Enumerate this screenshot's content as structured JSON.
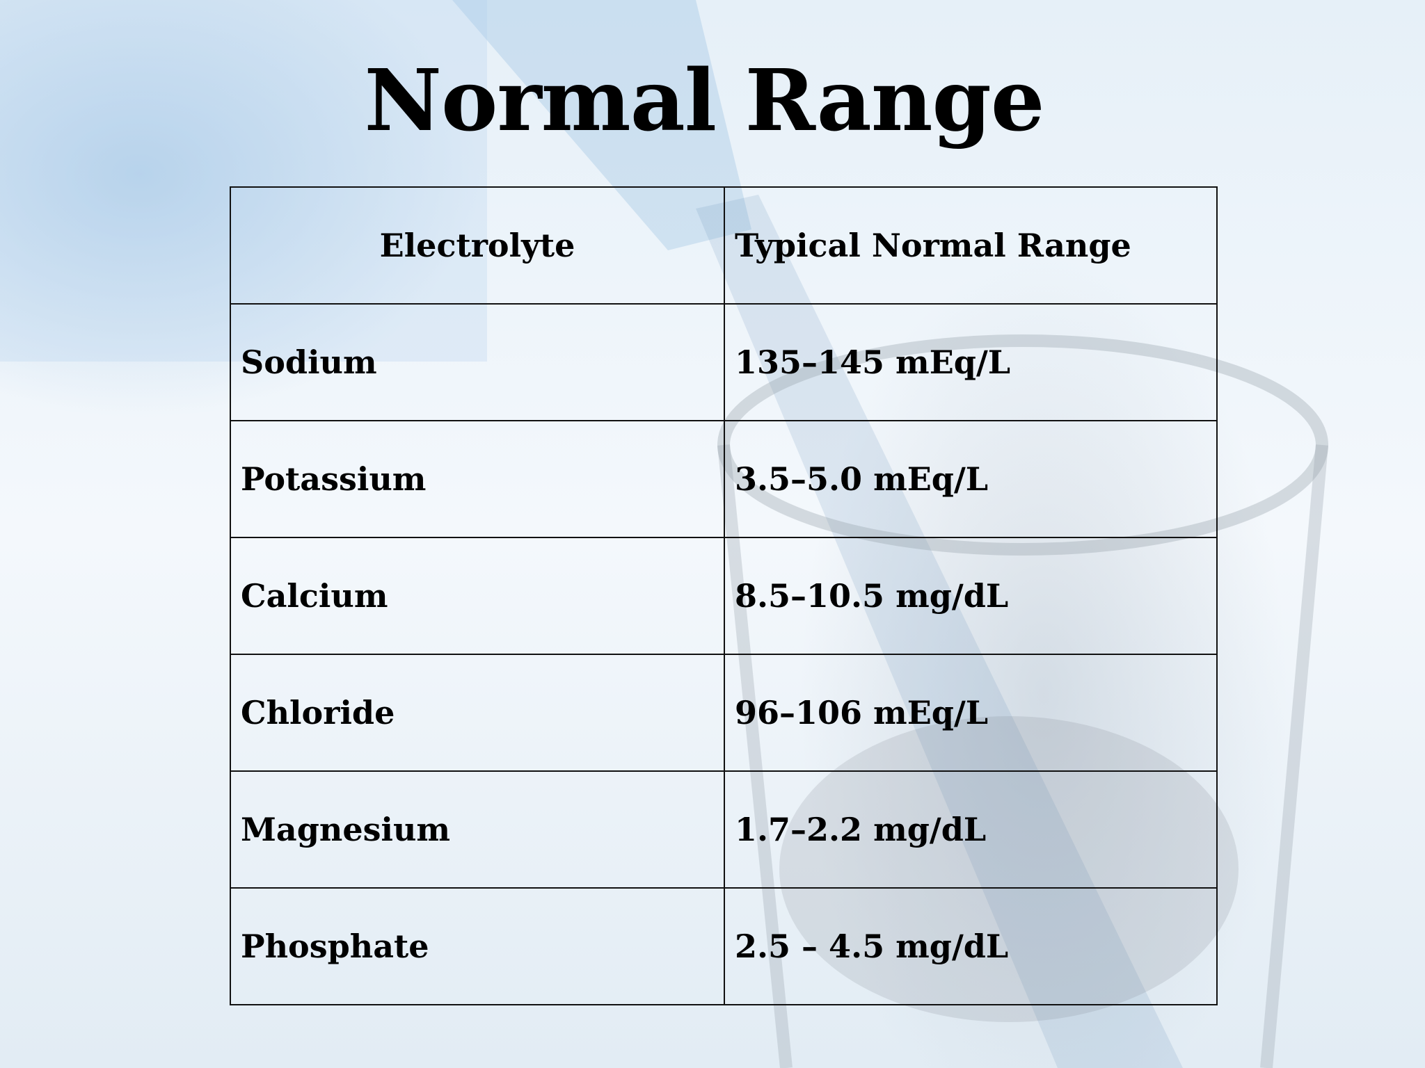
{
  "title": "Normal Range",
  "table": {
    "header": [
      "Electrolyte",
      "Typical Normal Range"
    ],
    "rows": [
      [
        "Sodium",
        "135–145 mEq/L"
      ],
      [
        "Potassium",
        "3.5–5.0 mEq/L"
      ],
      [
        "Calcium",
        "8.5–10.5 mg/dL"
      ],
      [
        "Chloride",
        "96–106 mEq/L"
      ],
      [
        "Magnesium",
        "1.7–2.2 mg/dL"
      ],
      [
        "Phosphate",
        "2.5 – 4.5 mg/dL"
      ]
    ]
  }
}
